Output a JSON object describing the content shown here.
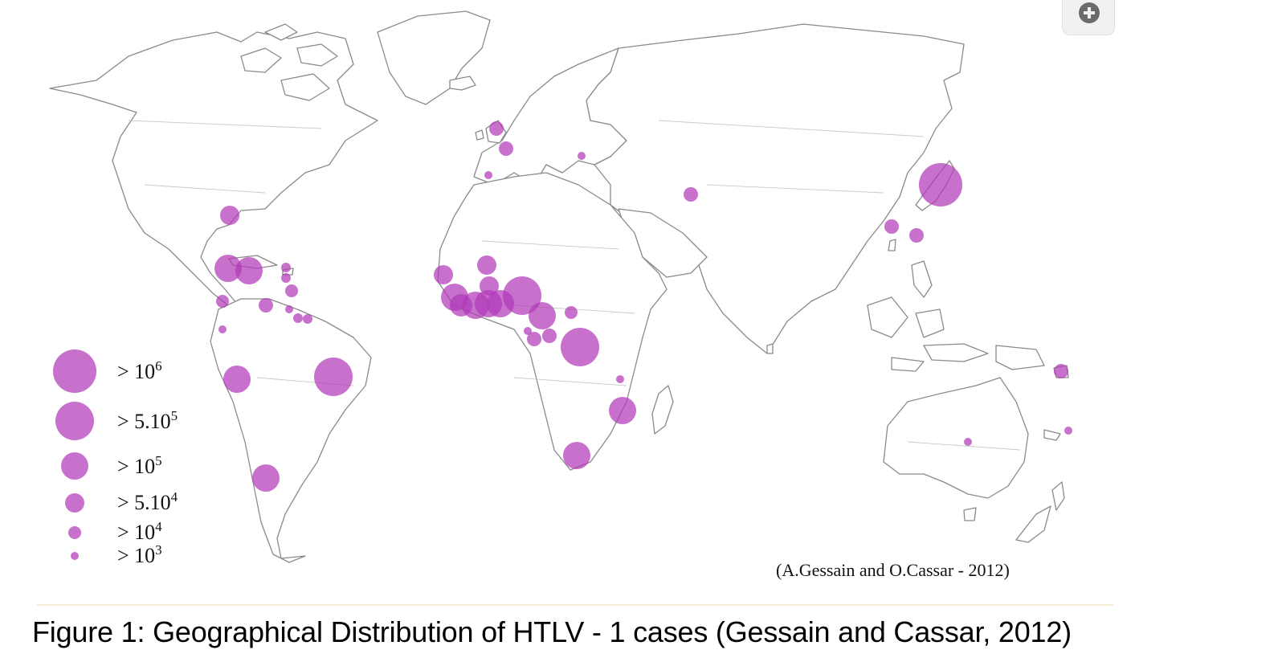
{
  "figure": {
    "caption": "Figure 1: Geographical Distribution of HTLV - 1 cases (Gessain and Cassar, 2012)",
    "credit": "(A.Gessain and O.Cassar - 2012)",
    "bubble_color": "#b23ab8",
    "zoom_icon": "zoom-in-icon"
  },
  "legend": [
    {
      "base": "> 10",
      "sup": "6",
      "threshold": 1000000
    },
    {
      "base": "> 5.10",
      "sup": "5",
      "threshold": 500000
    },
    {
      "base": "> 10",
      "sup": "5",
      "threshold": 100000
    },
    {
      "base": "> 5.10",
      "sup": "4",
      "threshold": 50000
    },
    {
      "base": "> 10",
      "sup": "4",
      "threshold": 10000
    },
    {
      "base": "> 10",
      "sup": "3",
      "threshold": 1000
    }
  ]
}
